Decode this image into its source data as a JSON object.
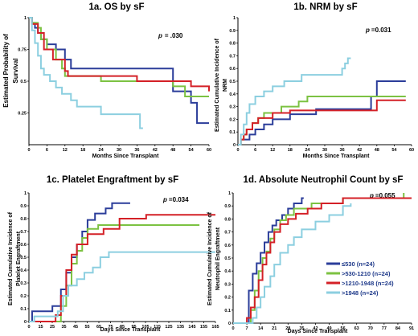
{
  "colors": {
    "le530": "#2b3d9a",
    "530_1210": "#7cc242",
    "1210_1948": "#d42027",
    "gt1948": "#8ccfe0",
    "axis": "#000000"
  },
  "legend": [
    "≤530 (n=24)",
    ">530-1210 (n=24)",
    ">1210-1948 (n=24)",
    ">1948 (n=24)"
  ],
  "chart_data": [
    {
      "id": "1a",
      "type": "line",
      "title": "1a. OS by sF",
      "p_value_label": "p",
      "p_value": "= .030",
      "xlabel": "Months  Since  Transplant",
      "ylabel": [
        "Estimated  Probability  of",
        "Survival"
      ],
      "xlim": [
        0,
        60
      ],
      "ylim": [
        0,
        1
      ],
      "xticks": [
        "0",
        "6",
        "12",
        "18",
        "24",
        "30",
        "36",
        "42",
        "48",
        "54",
        "60"
      ],
      "yticks": [
        "0.25",
        "0.5",
        "0.75",
        "1"
      ],
      "series": [
        {
          "color_key": "le530",
          "steps": [
            [
              0,
              1
            ],
            [
              1,
              0.96
            ],
            [
              2,
              0.92
            ],
            [
              3,
              0.88
            ],
            [
              4,
              0.83
            ],
            [
              6,
              0.79
            ],
            [
              9,
              0.75
            ],
            [
              12,
              0.67
            ],
            [
              14,
              0.6
            ],
            [
              21,
              0.6
            ],
            [
              48,
              0.42
            ],
            [
              54,
              0.33
            ],
            [
              56,
              0.17
            ],
            [
              60,
              0.17
            ]
          ]
        },
        {
          "color_key": "530_1210",
          "steps": [
            [
              0,
              1
            ],
            [
              1,
              0.96
            ],
            [
              3,
              0.92
            ],
            [
              4,
              0.83
            ],
            [
              6,
              0.75
            ],
            [
              9,
              0.67
            ],
            [
              11,
              0.6
            ],
            [
              12,
              0.54
            ],
            [
              24,
              0.5
            ],
            [
              48,
              0.46
            ],
            [
              52,
              0.38
            ],
            [
              60,
              0.38
            ]
          ]
        },
        {
          "color_key": "1210_1948",
          "steps": [
            [
              0,
              1
            ],
            [
              1,
              0.95
            ],
            [
              3,
              0.88
            ],
            [
              5,
              0.75
            ],
            [
              8,
              0.67
            ],
            [
              12,
              0.58
            ],
            [
              13,
              0.54
            ],
            [
              36,
              0.5
            ],
            [
              54,
              0.46
            ],
            [
              56,
              0.46
            ],
            [
              60,
              0.42
            ]
          ]
        },
        {
          "color_key": "gt1948",
          "steps": [
            [
              0,
              1
            ],
            [
              1,
              0.9
            ],
            [
              2,
              0.8
            ],
            [
              3,
              0.7
            ],
            [
              4,
              0.6
            ],
            [
              5,
              0.55
            ],
            [
              7,
              0.5
            ],
            [
              9,
              0.45
            ],
            [
              11,
              0.4
            ],
            [
              14,
              0.35
            ],
            [
              16,
              0.3
            ],
            [
              24,
              0.24
            ],
            [
              37,
              0.13
            ],
            [
              38,
              0.13
            ]
          ]
        }
      ]
    },
    {
      "id": "1b",
      "type": "line",
      "title": "1b. NRM by sF",
      "p_value_label": "p",
      "p_value": "=0.031",
      "xlabel": "Months  Since  Transplant",
      "ylabel": [
        "Estimated  Cumulative  Incidence  of",
        "NRM"
      ],
      "xlim": [
        0,
        60
      ],
      "ylim": [
        0,
        1
      ],
      "xticks": [
        "0",
        "6",
        "12",
        "18",
        "24",
        "30",
        "36",
        "42",
        "48",
        "54",
        "60"
      ],
      "yticks": [
        "0",
        "0.1",
        "0.2",
        "0.3",
        "0.4",
        "0.5",
        "0.6",
        "0.7",
        "0.8",
        "0.9",
        "1"
      ],
      "series": [
        {
          "color_key": "le530",
          "steps": [
            [
              0,
              0
            ],
            [
              1,
              0.04
            ],
            [
              4,
              0.08
            ],
            [
              6,
              0.12
            ],
            [
              9,
              0.16
            ],
            [
              12,
              0.2
            ],
            [
              18,
              0.24
            ],
            [
              27,
              0.28
            ],
            [
              46,
              0.38
            ],
            [
              48,
              0.5
            ],
            [
              58,
              0.5
            ]
          ]
        },
        {
          "color_key": "530_1210",
          "steps": [
            [
              0,
              0
            ],
            [
              1,
              0.04
            ],
            [
              2,
              0.08
            ],
            [
              3,
              0.12
            ],
            [
              5,
              0.17
            ],
            [
              7,
              0.21
            ],
            [
              9,
              0.25
            ],
            [
              15,
              0.3
            ],
            [
              21,
              0.34
            ],
            [
              24,
              0.38
            ],
            [
              58,
              0.38
            ]
          ]
        },
        {
          "color_key": "1210_1948",
          "steps": [
            [
              0,
              0
            ],
            [
              1,
              0.04
            ],
            [
              2,
              0.08
            ],
            [
              3,
              0.12
            ],
            [
              5,
              0.17
            ],
            [
              7,
              0.21
            ],
            [
              12,
              0.25
            ],
            [
              18,
              0.27
            ],
            [
              48,
              0.35
            ],
            [
              58,
              0.35
            ]
          ]
        },
        {
          "color_key": "gt1948",
          "steps": [
            [
              0,
              0
            ],
            [
              1,
              0.08
            ],
            [
              2,
              0.16
            ],
            [
              3,
              0.25
            ],
            [
              4,
              0.32
            ],
            [
              6,
              0.38
            ],
            [
              9,
              0.42
            ],
            [
              12,
              0.46
            ],
            [
              16,
              0.5
            ],
            [
              22,
              0.55
            ],
            [
              36,
              0.6
            ],
            [
              37,
              0.64
            ],
            [
              38,
              0.68
            ],
            [
              39,
              0.68
            ]
          ]
        }
      ]
    },
    {
      "id": "1c",
      "type": "line",
      "title": "1c. Platelet Engraftment by sF",
      "p_value_label": "p",
      "p_value": "=0.034",
      "xlabel": "Days  Since  Transplant",
      "ylabel": [
        "Estimated  Cumulative  Incidence  of",
        "Platelet Engraftment"
      ],
      "xlim": [
        0,
        175
      ],
      "ylim": [
        0,
        1
      ],
      "xticks": [
        "0",
        "15",
        "25",
        "35",
        "45",
        "55",
        "65",
        "75",
        "85",
        "95",
        "105",
        "115",
        "125",
        "135",
        "145",
        "155",
        "165"
      ],
      "yticks": [
        "0",
        "0.1",
        "0.2",
        "0.3",
        "0.4",
        "0.5",
        "0.6",
        "0.7",
        "0.8",
        "0.9",
        "1"
      ],
      "series": [
        {
          "color_key": "le530",
          "steps": [
            [
              0,
              0
            ],
            [
              3,
              0.08
            ],
            [
              22,
              0.12
            ],
            [
              30,
              0.25
            ],
            [
              35,
              0.38
            ],
            [
              40,
              0.5
            ],
            [
              45,
              0.6
            ],
            [
              50,
              0.7
            ],
            [
              55,
              0.79
            ],
            [
              62,
              0.84
            ],
            [
              72,
              0.88
            ],
            [
              78,
              0.92
            ],
            [
              95,
              0.92
            ]
          ]
        },
        {
          "color_key": "530_1210",
          "steps": [
            [
              0,
              0
            ],
            [
              30,
              0.12
            ],
            [
              35,
              0.28
            ],
            [
              40,
              0.45
            ],
            [
              45,
              0.55
            ],
            [
              50,
              0.65
            ],
            [
              55,
              0.72
            ],
            [
              65,
              0.75
            ],
            [
              160,
              0.75
            ]
          ]
        },
        {
          "color_key": "1210_1948",
          "steps": [
            [
              0,
              0
            ],
            [
              25,
              0.05
            ],
            [
              30,
              0.2
            ],
            [
              35,
              0.4
            ],
            [
              40,
              0.52
            ],
            [
              45,
              0.6
            ],
            [
              55,
              0.68
            ],
            [
              70,
              0.72
            ],
            [
              85,
              0.8
            ],
            [
              110,
              0.83
            ],
            [
              175,
              0.83
            ]
          ]
        },
        {
          "color_key": "gt1948",
          "steps": [
            [
              0,
              0
            ],
            [
              5,
              0.04
            ],
            [
              27,
              0.08
            ],
            [
              32,
              0.2
            ],
            [
              37,
              0.28
            ],
            [
              45,
              0.33
            ],
            [
              52,
              0.38
            ],
            [
              60,
              0.42
            ],
            [
              67,
              0.5
            ],
            [
              75,
              0.54
            ],
            [
              175,
              0.54
            ]
          ]
        }
      ]
    },
    {
      "id": "1d",
      "type": "line",
      "title": "1d. Absolute Neutrophil Count by sF",
      "p_value_label": "p",
      "p_value": "=0.055",
      "xlabel": "Days  Since  Transplant",
      "ylabel": [
        "Estimated  Cumulative  Incidence  of",
        "Neutrophil Engraftment"
      ],
      "xlim": [
        0,
        91
      ],
      "ylim": [
        0,
        1
      ],
      "xticks": [
        "0",
        "7",
        "14",
        "21",
        "28",
        "35",
        "42",
        "49",
        "56",
        "63",
        "70",
        "77",
        "84",
        "91"
      ],
      "yticks": [
        "0",
        "0.1",
        "0.2",
        "0.3",
        "0.4",
        "0.5",
        "0.6",
        "0.7",
        "0.8",
        "0.9",
        "1"
      ],
      "series": [
        {
          "color_key": "le530",
          "steps": [
            [
              0,
              0
            ],
            [
              8,
              0.25
            ],
            [
              10,
              0.38
            ],
            [
              12,
              0.46
            ],
            [
              14,
              0.54
            ],
            [
              16,
              0.62
            ],
            [
              18,
              0.7
            ],
            [
              20,
              0.75
            ],
            [
              22,
              0.79
            ],
            [
              25,
              0.83
            ],
            [
              28,
              0.88
            ],
            [
              31,
              0.92
            ],
            [
              35,
              0.96
            ],
            [
              36,
              0.96
            ]
          ]
        },
        {
          "color_key": "530_1210",
          "steps": [
            [
              0,
              0
            ],
            [
              9,
              0.1
            ],
            [
              11,
              0.25
            ],
            [
              13,
              0.4
            ],
            [
              15,
              0.5
            ],
            [
              17,
              0.55
            ],
            [
              19,
              0.65
            ],
            [
              21,
              0.72
            ],
            [
              24,
              0.79
            ],
            [
              27,
              0.83
            ],
            [
              31,
              0.88
            ],
            [
              40,
              0.92
            ],
            [
              56,
              0.96
            ],
            [
              84,
              0.96
            ],
            [
              87,
              1
            ]
          ]
        },
        {
          "color_key": "1210_1948",
          "steps": [
            [
              0,
              0
            ],
            [
              7,
              0.04
            ],
            [
              9,
              0.12
            ],
            [
              11,
              0.2
            ],
            [
              13,
              0.33
            ],
            [
              15,
              0.45
            ],
            [
              17,
              0.54
            ],
            [
              19,
              0.62
            ],
            [
              21,
              0.7
            ],
            [
              24,
              0.76
            ],
            [
              28,
              0.8
            ],
            [
              32,
              0.84
            ],
            [
              38,
              0.88
            ],
            [
              45,
              0.92
            ],
            [
              56,
              0.96
            ],
            [
              91,
              0.96
            ]
          ]
        },
        {
          "color_key": "gt1948",
          "steps": [
            [
              0,
              0
            ],
            [
              10,
              0.04
            ],
            [
              12,
              0.12
            ],
            [
              14,
              0.2
            ],
            [
              16,
              0.28
            ],
            [
              19,
              0.36
            ],
            [
              21,
              0.45
            ],
            [
              24,
              0.54
            ],
            [
              28,
              0.6
            ],
            [
              31,
              0.66
            ],
            [
              35,
              0.72
            ],
            [
              42,
              0.78
            ],
            [
              49,
              0.83
            ],
            [
              56,
              0.9
            ],
            [
              60,
              0.92
            ]
          ]
        }
      ]
    }
  ]
}
